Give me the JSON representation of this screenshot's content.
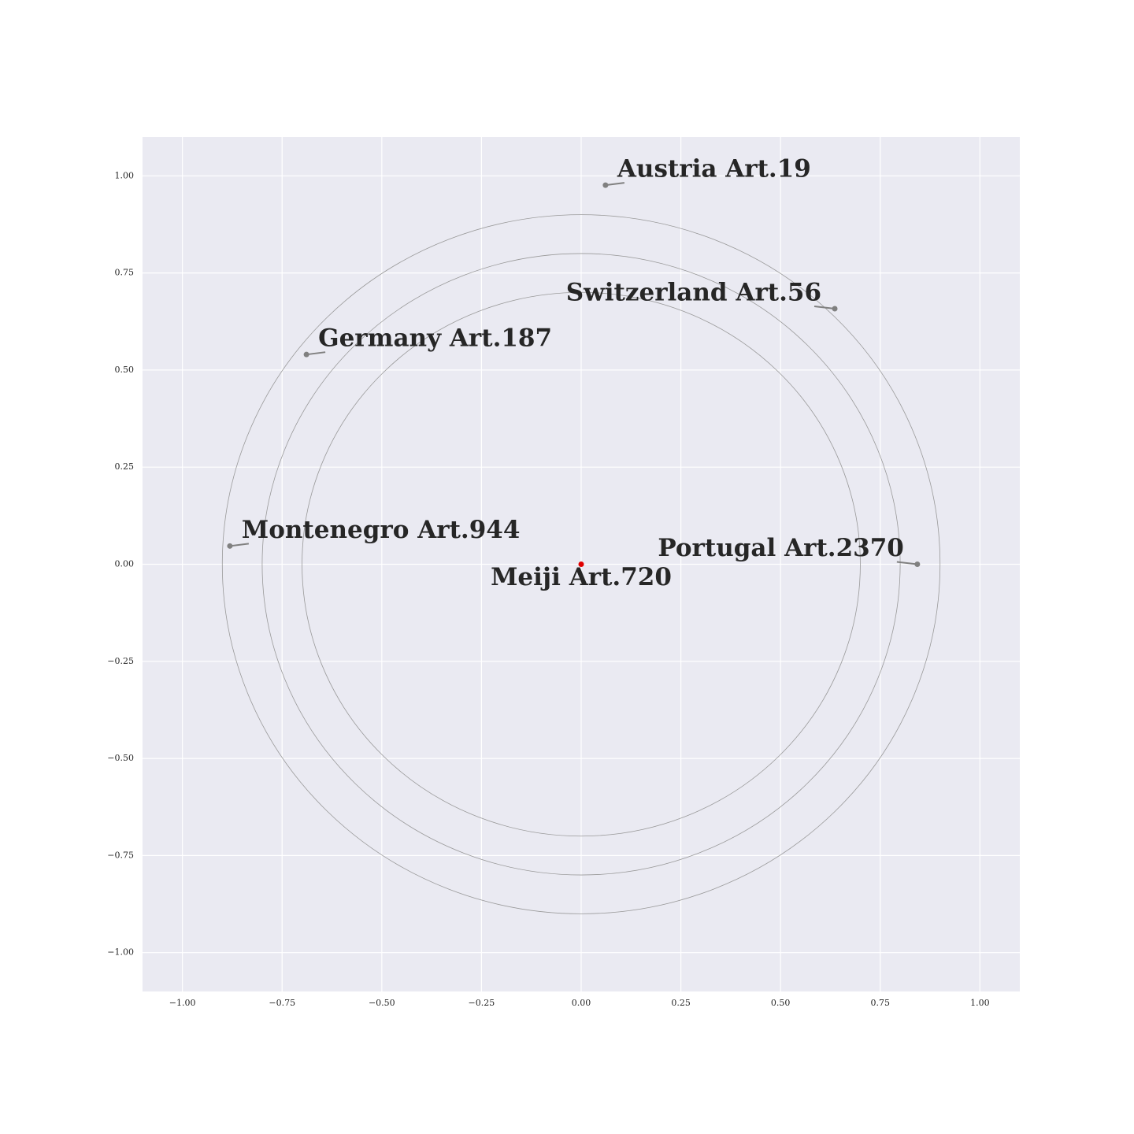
{
  "chart_data": {
    "type": "scatter",
    "points": [
      {
        "name": "Meiji Art.720",
        "x": 0,
        "y": 0,
        "color": "#e00000"
      },
      {
        "name": "Austria Art.19",
        "x": 0.061,
        "y": 0.976,
        "color": "#808080"
      },
      {
        "name": "Switzerland Art.56",
        "x": 0.636,
        "y": 0.658,
        "color": "#808080"
      },
      {
        "name": "Germany Art.187",
        "x": -0.689,
        "y": 0.54,
        "color": "#808080"
      },
      {
        "name": "Montenegro Art.944",
        "x": -0.881,
        "y": 0.047,
        "color": "#808080"
      },
      {
        "name": "Portugal Art.2370",
        "x": 0.843,
        "y": 0,
        "color": "#808080"
      }
    ],
    "circles": [
      0.7,
      0.8,
      0.9
    ],
    "xlim": [
      -1.1,
      1.1
    ],
    "ylim": [
      -1.1,
      1.1
    ],
    "xticks": [
      {
        "value": -1,
        "label": "−1.00"
      },
      {
        "value": -0.75,
        "label": "−0.75"
      },
      {
        "value": -0.5,
        "label": "−0.50"
      },
      {
        "value": -0.25,
        "label": "−0.25"
      },
      {
        "value": 0,
        "label": "0.00"
      },
      {
        "value": 0.25,
        "label": "0.25"
      },
      {
        "value": 0.5,
        "label": "0.50"
      },
      {
        "value": 0.75,
        "label": "0.75"
      },
      {
        "value": 1,
        "label": "1.00"
      }
    ],
    "yticks": [
      {
        "value": -1,
        "label": "−1.00"
      },
      {
        "value": -0.75,
        "label": "−0.75"
      },
      {
        "value": -0.5,
        "label": "−0.50"
      },
      {
        "value": -0.25,
        "label": "−0.25"
      },
      {
        "value": 0,
        "label": "0.00"
      },
      {
        "value": 0.25,
        "label": "0.25"
      },
      {
        "value": 0.5,
        "label": "0.50"
      },
      {
        "value": 0.75,
        "label": "0.75"
      },
      {
        "value": 1,
        "label": "1.00"
      }
    ],
    "grid": true
  }
}
